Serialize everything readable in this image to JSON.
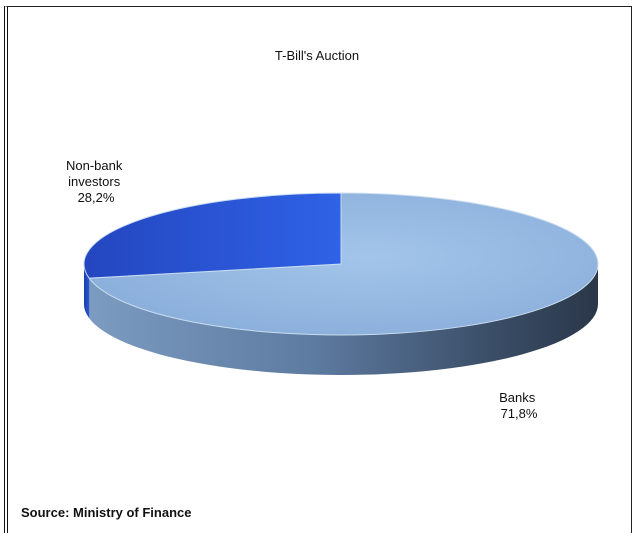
{
  "chart_data": {
    "type": "pie",
    "title": "T-Bill's Auction",
    "slices": [
      {
        "label_lines": [
          "Non-bank",
          "investors"
        ],
        "value_label": "28,2%",
        "value": 28.2,
        "color": "#2a56d6"
      },
      {
        "label_lines": [
          "Banks"
        ],
        "value_label": "71,8%",
        "value": 71.8,
        "color": "#8fb5df"
      }
    ],
    "style": "3d-exploded-none",
    "source": "Source: Ministry  of Finance"
  }
}
